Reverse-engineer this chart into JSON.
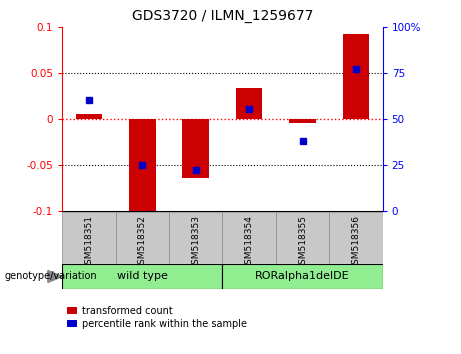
{
  "title": "GDS3720 / ILMN_1259677",
  "samples": [
    "GSM518351",
    "GSM518352",
    "GSM518353",
    "GSM518354",
    "GSM518355",
    "GSM518356"
  ],
  "transformed_count": [
    0.005,
    -0.1,
    -0.065,
    0.033,
    -0.005,
    0.092
  ],
  "percentile_rank": [
    60,
    25,
    22,
    55,
    38,
    77
  ],
  "red_bar_color": "#CC0000",
  "blue_dot_color": "#0000CC",
  "ylim_left": [
    -0.1,
    0.1
  ],
  "ylim_right": [
    0,
    100
  ],
  "yticks_left": [
    -0.1,
    -0.05,
    0,
    0.05,
    0.1
  ],
  "yticks_right": [
    0,
    25,
    50,
    75,
    100
  ],
  "dotted_lines_black": [
    -0.05,
    0.05
  ],
  "legend_red_label": "transformed count",
  "legend_blue_label": "percentile rank within the sample",
  "genotype_label": "genotype/variation",
  "wild_type_label": "wild type",
  "rora_label": "RORalpha1delDE",
  "wild_type_color": "#90EE90",
  "rora_color": "#90EE90",
  "xtick_bg": "#C8C8C8",
  "bar_width": 0.5
}
